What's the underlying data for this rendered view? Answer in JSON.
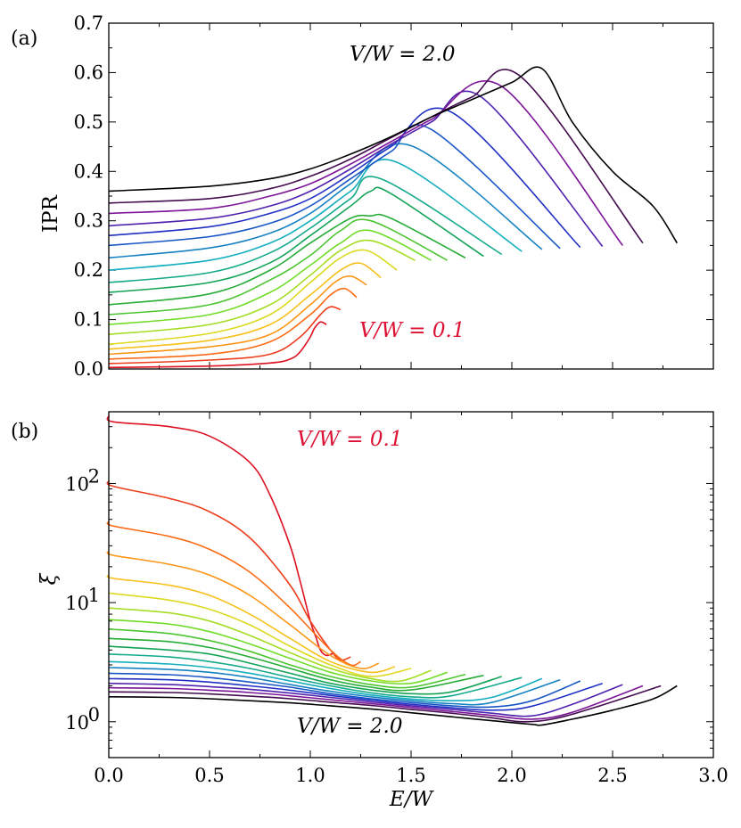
{
  "chart_data": [
    {
      "panel": "(a)",
      "type": "line",
      "xlabel": "E/W",
      "ylabel": "IPR",
      "xlim": [
        0.0,
        3.0
      ],
      "ylim": [
        0.0,
        0.7
      ],
      "yticks": [
        "0.0",
        "0.1",
        "0.2",
        "0.3",
        "0.4",
        "0.5",
        "0.6",
        "0.7"
      ],
      "annotations": [
        {
          "text": "V/W = 2.0",
          "color": "#000000"
        },
        {
          "text": "V/W = 0.1",
          "color": "#dd1133"
        }
      ],
      "series_note": "20 curves, V/W = 0.1 to 2.0 in steps of 0.1, colored red to black",
      "series": [
        {
          "name": "V/W=0.1",
          "x": [
            0.0,
            0.5,
            0.8,
            0.9,
            0.95,
            1.0,
            1.02,
            1.05,
            1.08
          ],
          "y": [
            0.003,
            0.006,
            0.012,
            0.02,
            0.035,
            0.065,
            0.082,
            0.095,
            0.09
          ]
        },
        {
          "name": "V/W=0.2",
          "x": [
            0.0,
            0.5,
            0.8,
            0.95,
            1.05,
            1.1,
            1.15
          ],
          "y": [
            0.011,
            0.018,
            0.03,
            0.065,
            0.11,
            0.126,
            0.12
          ]
        },
        {
          "name": "V/W=0.3",
          "x": [
            0.0,
            0.5,
            0.8,
            1.0,
            1.1,
            1.17,
            1.23
          ],
          "y": [
            0.02,
            0.03,
            0.055,
            0.11,
            0.15,
            0.163,
            0.145
          ]
        },
        {
          "name": "V/W=0.4",
          "x": [
            0.0,
            0.5,
            0.8,
            1.0,
            1.12,
            1.2,
            1.28
          ],
          "y": [
            0.03,
            0.045,
            0.07,
            0.13,
            0.175,
            0.188,
            0.17
          ]
        },
        {
          "name": "V/W=0.5",
          "x": [
            0.0,
            0.5,
            0.8,
            1.0,
            1.15,
            1.25,
            1.35
          ],
          "y": [
            0.04,
            0.058,
            0.09,
            0.15,
            0.2,
            0.214,
            0.185
          ]
        },
        {
          "name": "V/W=0.6",
          "x": [
            0.0,
            0.5,
            0.8,
            1.0,
            1.15,
            1.28,
            1.43
          ],
          "y": [
            0.05,
            0.072,
            0.11,
            0.175,
            0.225,
            0.24,
            0.2
          ]
        },
        {
          "name": "V/W=0.7",
          "x": [
            0.0,
            0.5,
            0.8,
            1.0,
            1.15,
            1.3,
            1.52
          ],
          "y": [
            0.07,
            0.09,
            0.13,
            0.19,
            0.24,
            0.26,
            0.22
          ]
        },
        {
          "name": "V/W=0.8",
          "x": [
            0.0,
            0.5,
            0.8,
            1.0,
            1.15,
            1.3,
            1.6
          ],
          "y": [
            0.09,
            0.11,
            0.155,
            0.21,
            0.255,
            0.28,
            0.22
          ]
        },
        {
          "name": "V/W=0.9",
          "x": [
            0.0,
            0.5,
            0.8,
            1.0,
            1.15,
            1.3,
            1.68
          ],
          "y": [
            0.11,
            0.13,
            0.18,
            0.23,
            0.28,
            0.3,
            0.22
          ]
        },
        {
          "name": "V/W=1.0",
          "x": [
            0.0,
            0.5,
            0.8,
            1.0,
            1.2,
            1.3,
            1.4,
            1.77
          ],
          "y": [
            0.13,
            0.152,
            0.2,
            0.255,
            0.305,
            0.31,
            0.305,
            0.225
          ]
        },
        {
          "name": "V/W=1.1",
          "x": [
            0.0,
            0.5,
            0.8,
            1.0,
            1.2,
            1.3,
            1.4,
            1.86
          ],
          "y": [
            0.155,
            0.175,
            0.215,
            0.27,
            0.33,
            0.36,
            0.355,
            0.228
          ]
        },
        {
          "name": "V/W=1.2",
          "x": [
            0.0,
            0.5,
            0.8,
            1.0,
            1.2,
            1.35,
            1.95
          ],
          "y": [
            0.175,
            0.195,
            0.235,
            0.285,
            0.345,
            0.385,
            0.232
          ]
        },
        {
          "name": "V/W=1.3",
          "x": [
            0.0,
            0.5,
            0.8,
            1.0,
            1.2,
            1.42,
            2.05
          ],
          "y": [
            0.2,
            0.22,
            0.255,
            0.3,
            0.36,
            0.42,
            0.238
          ]
        },
        {
          "name": "V/W=1.4",
          "x": [
            0.0,
            0.5,
            0.8,
            1.0,
            1.2,
            1.5,
            2.15
          ],
          "y": [
            0.225,
            0.245,
            0.275,
            0.315,
            0.375,
            0.452,
            0.242
          ]
        },
        {
          "name": "V/W=1.5",
          "x": [
            0.0,
            0.5,
            0.8,
            1.0,
            1.2,
            1.4,
            1.6,
            2.24
          ],
          "y": [
            0.25,
            0.268,
            0.295,
            0.33,
            0.385,
            0.44,
            0.485,
            0.244
          ]
        },
        {
          "name": "V/W=1.6",
          "x": [
            0.0,
            0.5,
            0.8,
            1.0,
            1.2,
            1.4,
            1.7,
            2.34
          ],
          "y": [
            0.27,
            0.288,
            0.315,
            0.345,
            0.395,
            0.45,
            0.52,
            0.246
          ]
        },
        {
          "name": "V/W=1.7",
          "x": [
            0.0,
            0.5,
            0.8,
            1.0,
            1.2,
            1.4,
            1.6,
            1.85,
            2.45
          ],
          "y": [
            0.29,
            0.305,
            0.33,
            0.36,
            0.405,
            0.455,
            0.5,
            0.55,
            0.248
          ]
        },
        {
          "name": "V/W=1.8",
          "x": [
            0.0,
            0.5,
            0.8,
            1.0,
            1.2,
            1.4,
            1.6,
            1.95,
            2.55
          ],
          "y": [
            0.315,
            0.325,
            0.35,
            0.375,
            0.415,
            0.46,
            0.505,
            0.572,
            0.25
          ]
        },
        {
          "name": "V/W=1.9",
          "x": [
            0.0,
            0.5,
            0.8,
            1.0,
            1.2,
            1.4,
            1.6,
            1.8,
            2.05,
            2.65
          ],
          "y": [
            0.336,
            0.345,
            0.365,
            0.39,
            0.425,
            0.468,
            0.51,
            0.55,
            0.59,
            0.255
          ]
        },
        {
          "name": "V/W=2.0",
          "x": [
            0.0,
            0.5,
            0.8,
            1.0,
            1.2,
            1.4,
            1.6,
            1.8,
            2.0,
            2.15,
            2.3,
            2.5,
            2.7,
            2.82
          ],
          "y": [
            0.36,
            0.37,
            0.385,
            0.405,
            0.435,
            0.47,
            0.51,
            0.545,
            0.58,
            0.608,
            0.5,
            0.4,
            0.33,
            0.255
          ]
        }
      ]
    },
    {
      "panel": "(b)",
      "type": "line",
      "scale_y": "log",
      "xlabel": "E/W",
      "ylabel": "ξ",
      "xlim": [
        0.0,
        3.0
      ],
      "ylim": [
        0.5,
        400
      ],
      "xticks": [
        "0.0",
        "0.5",
        "1.0",
        "1.5",
        "2.0",
        "2.5",
        "3.0"
      ],
      "yticks": [
        {
          "value": 1,
          "base": "10",
          "exp": "0"
        },
        {
          "value": 10,
          "base": "10",
          "exp": "1"
        },
        {
          "value": 100,
          "base": "10",
          "exp": "2"
        }
      ],
      "annotations": [
        {
          "text": "V/W = 0.1",
          "color": "#dd1133"
        },
        {
          "text": "V/W = 2.0",
          "color": "#000000"
        }
      ],
      "series_note": "20 curves, V/W = 0.1 to 2.0 in steps of 0.1, colored red to black",
      "series": [
        {
          "name": "V/W=0.1",
          "x": [
            0.0,
            0.02,
            0.3,
            0.5,
            0.7,
            0.8,
            0.9,
            0.95,
            1.0,
            1.03,
            1.05,
            1.08,
            1.12
          ],
          "y": [
            370,
            330,
            300,
            250,
            150,
            80,
            30,
            15,
            7,
            5,
            4,
            3.6,
            3.8
          ]
        },
        {
          "name": "V/W=0.2",
          "x": [
            0.0,
            0.02,
            0.3,
            0.5,
            0.7,
            0.9,
            1.0,
            1.1,
            1.15,
            1.2
          ],
          "y": [
            105,
            95,
            75,
            58,
            35,
            14,
            7,
            4,
            3.3,
            3.5
          ]
        },
        {
          "name": "V/W=0.3",
          "x": [
            0.0,
            0.02,
            0.3,
            0.5,
            0.7,
            0.9,
            1.1,
            1.2,
            1.25
          ],
          "y": [
            48,
            44,
            36,
            28,
            18,
            9,
            4,
            3,
            3.2
          ]
        },
        {
          "name": "V/W=0.4",
          "x": [
            0.0,
            0.02,
            0.3,
            0.5,
            0.7,
            0.9,
            1.1,
            1.25,
            1.34
          ],
          "y": [
            27,
            25,
            21,
            17,
            11.5,
            6.5,
            3.6,
            2.8,
            3.1
          ]
        },
        {
          "name": "V/W=0.5",
          "x": [
            0.0,
            0.02,
            0.3,
            0.5,
            0.7,
            0.9,
            1.1,
            1.3,
            1.42
          ],
          "y": [
            17,
            16,
            14,
            11.5,
            8,
            5,
            3.2,
            2.6,
            2.9
          ]
        },
        {
          "name": "V/W=0.6",
          "x": [
            0.0,
            0.3,
            0.5,
            0.7,
            0.9,
            1.1,
            1.3,
            1.5
          ],
          "y": [
            12,
            10.5,
            8.8,
            6.5,
            4.3,
            3,
            2.4,
            2.8
          ]
        },
        {
          "name": "V/W=0.7",
          "x": [
            0.0,
            0.3,
            0.5,
            0.7,
            0.9,
            1.1,
            1.3,
            1.45,
            1.6
          ],
          "y": [
            9,
            8.2,
            7,
            5.3,
            3.8,
            2.8,
            2.3,
            2.2,
            2.7
          ]
        },
        {
          "name": "V/W=0.8",
          "x": [
            0.0,
            0.3,
            0.5,
            0.7,
            0.9,
            1.1,
            1.3,
            1.5,
            1.68
          ],
          "y": [
            7.2,
            6.6,
            5.7,
            4.5,
            3.4,
            2.6,
            2.2,
            2.1,
            2.6
          ]
        },
        {
          "name": "V/W=0.9",
          "x": [
            0.0,
            0.3,
            0.5,
            0.7,
            0.9,
            1.1,
            1.3,
            1.5,
            1.77
          ],
          "y": [
            6,
            5.5,
            4.8,
            3.9,
            3,
            2.4,
            2.05,
            1.95,
            2.5
          ]
        },
        {
          "name": "V/W=1.0",
          "x": [
            0.0,
            0.3,
            0.5,
            0.7,
            0.9,
            1.1,
            1.3,
            1.5,
            1.86
          ],
          "y": [
            5,
            4.7,
            4.2,
            3.5,
            2.8,
            2.25,
            1.95,
            1.85,
            2.45
          ]
        },
        {
          "name": "V/W=1.1",
          "x": [
            0.0,
            0.3,
            0.5,
            0.7,
            0.9,
            1.1,
            1.3,
            1.5,
            1.7,
            1.95
          ],
          "y": [
            4.3,
            4,
            3.7,
            3.1,
            2.55,
            2.1,
            1.85,
            1.72,
            1.78,
            2.4
          ]
        },
        {
          "name": "V/W=1.2",
          "x": [
            0.0,
            0.3,
            0.5,
            0.7,
            0.9,
            1.1,
            1.3,
            1.5,
            1.7,
            2.05
          ],
          "y": [
            3.7,
            3.5,
            3.2,
            2.8,
            2.35,
            2,
            1.75,
            1.62,
            1.65,
            2.35
          ]
        },
        {
          "name": "V/W=1.3",
          "x": [
            0.0,
            0.3,
            0.5,
            0.7,
            0.9,
            1.1,
            1.3,
            1.5,
            1.7,
            1.9,
            2.15
          ],
          "y": [
            3.2,
            3.05,
            2.85,
            2.55,
            2.2,
            1.9,
            1.68,
            1.55,
            1.5,
            1.6,
            2.3
          ]
        },
        {
          "name": "V/W=1.4",
          "x": [
            0.0,
            0.3,
            0.5,
            0.7,
            0.9,
            1.1,
            1.3,
            1.5,
            1.7,
            1.9,
            2.24
          ],
          "y": [
            2.85,
            2.75,
            2.6,
            2.35,
            2.05,
            1.8,
            1.62,
            1.5,
            1.42,
            1.45,
            2.25
          ]
        },
        {
          "name": "V/W=1.5",
          "x": [
            0.0,
            0.3,
            0.5,
            0.7,
            0.9,
            1.1,
            1.3,
            1.5,
            1.7,
            1.9,
            2.1,
            2.34
          ],
          "y": [
            2.55,
            2.48,
            2.35,
            2.15,
            1.95,
            1.72,
            1.56,
            1.45,
            1.36,
            1.33,
            1.5,
            2.2
          ]
        },
        {
          "name": "V/W=1.6",
          "x": [
            0.0,
            0.3,
            0.5,
            0.7,
            0.9,
            1.1,
            1.3,
            1.5,
            1.7,
            1.9,
            2.1,
            2.45
          ],
          "y": [
            2.3,
            2.25,
            2.15,
            2,
            1.84,
            1.66,
            1.52,
            1.4,
            1.31,
            1.25,
            1.35,
            2.1
          ]
        },
        {
          "name": "V/W=1.7",
          "x": [
            0.0,
            0.3,
            0.5,
            0.7,
            0.9,
            1.1,
            1.3,
            1.5,
            1.7,
            1.9,
            2.1,
            2.3,
            2.55
          ],
          "y": [
            2.1,
            2.05,
            1.97,
            1.87,
            1.74,
            1.6,
            1.47,
            1.36,
            1.27,
            1.18,
            1.12,
            1.4,
            2.05
          ]
        },
        {
          "name": "V/W=1.8",
          "x": [
            0.0,
            0.3,
            0.5,
            0.7,
            0.9,
            1.1,
            1.3,
            1.5,
            1.7,
            1.9,
            2.1,
            2.3,
            2.65
          ],
          "y": [
            1.93,
            1.9,
            1.84,
            1.76,
            1.65,
            1.53,
            1.42,
            1.32,
            1.22,
            1.13,
            1.05,
            1.2,
            2.0
          ]
        },
        {
          "name": "V/W=1.9",
          "x": [
            0.0,
            0.3,
            0.5,
            0.7,
            0.9,
            1.1,
            1.3,
            1.5,
            1.7,
            1.9,
            2.05,
            2.2,
            2.4,
            2.74
          ],
          "y": [
            1.78,
            1.76,
            1.71,
            1.64,
            1.56,
            1.46,
            1.37,
            1.27,
            1.18,
            1.08,
            1.0,
            1.05,
            1.3,
            2.0
          ]
        },
        {
          "name": "V/W=2.0",
          "x": [
            0.0,
            0.3,
            0.5,
            0.7,
            0.9,
            1.1,
            1.3,
            1.5,
            1.7,
            1.9,
            2.1,
            2.15,
            2.3,
            2.5,
            2.7,
            2.82
          ],
          "y": [
            1.62,
            1.6,
            1.56,
            1.5,
            1.44,
            1.36,
            1.28,
            1.19,
            1.1,
            1.02,
            0.95,
            0.94,
            1.05,
            1.25,
            1.55,
            2.0
          ]
        }
      ]
    }
  ]
}
